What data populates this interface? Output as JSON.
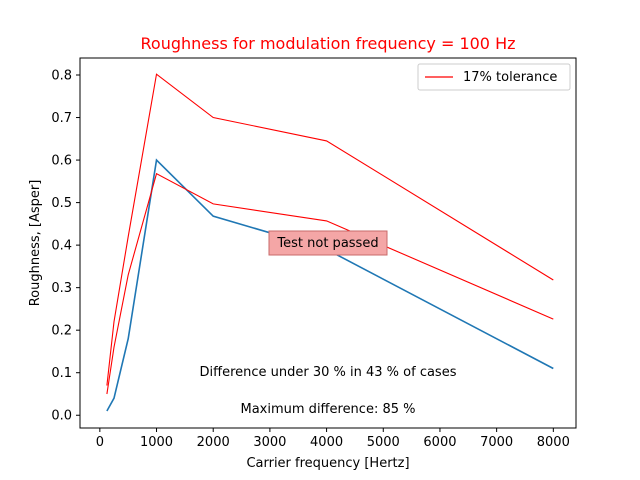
{
  "chart_data": {
    "type": "line",
    "title": "Roughness for modulation frequency = 100 Hz",
    "title_color": "#ff0000",
    "xlabel": "Carrier frequency [Hertz]",
    "ylabel": "Roughness, [Asper]",
    "xlim": [
      -350,
      8400
    ],
    "ylim": [
      -0.03,
      0.84
    ],
    "xticks": [
      0,
      1000,
      2000,
      3000,
      4000,
      5000,
      6000,
      7000,
      8000
    ],
    "yticks": [
      0.0,
      0.1,
      0.2,
      0.3,
      0.4,
      0.5,
      0.6,
      0.7,
      0.8
    ],
    "xtick_labels": [
      "0",
      "1000",
      "2000",
      "3000",
      "4000",
      "5000",
      "6000",
      "7000",
      "8000"
    ],
    "ytick_labels": [
      "0.0",
      "0.1",
      "0.2",
      "0.3",
      "0.4",
      "0.5",
      "0.6",
      "0.7",
      "0.8"
    ],
    "grid": false,
    "legend_position": "top-right",
    "series": [
      {
        "color": "#1f77b4",
        "x": [
          125,
          250,
          500,
          1000,
          2000,
          4000,
          8000
        ],
        "y": [
          0.01,
          0.04,
          0.18,
          0.6,
          0.468,
          0.39,
          0.11
        ]
      },
      {
        "name": "17% tolerance",
        "color": "#ff0000",
        "x": [
          125,
          250,
          500,
          1000,
          2000,
          4000,
          8000
        ],
        "y": [
          0.07,
          0.22,
          0.42,
          0.802,
          0.7,
          0.645,
          0.318
        ]
      },
      {
        "color": "#ff0000",
        "x": [
          125,
          250,
          500,
          1000,
          2000,
          4000,
          8000
        ],
        "y": [
          0.05,
          0.16,
          0.33,
          0.568,
          0.497,
          0.457,
          0.226
        ]
      }
    ],
    "annotations": {
      "status": "Test not passed",
      "status_bg": "#f4a6a6",
      "difference": "Difference under 30 % in 43 % of cases",
      "max_difference": "Maximum difference: 85 %"
    }
  }
}
